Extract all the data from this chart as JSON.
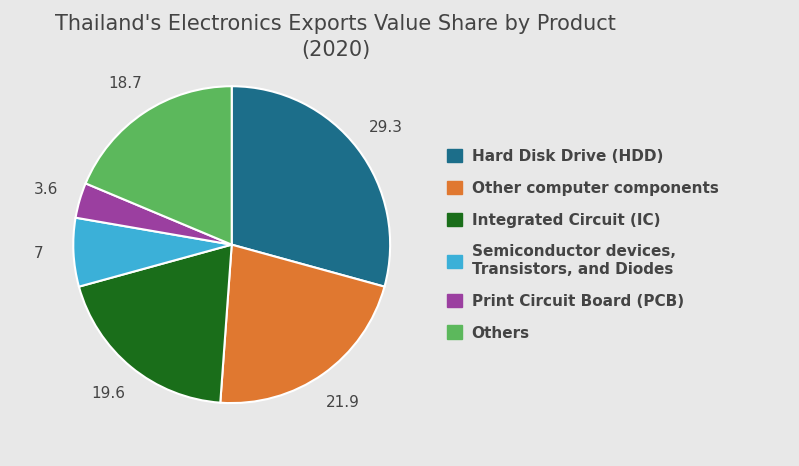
{
  "title": "Thailand's Electronics Exports Value Share by Product\n(2020)",
  "slices": [
    29.3,
    21.9,
    19.6,
    7.0,
    3.6,
    18.7
  ],
  "labels": [
    "29.3",
    "21.9",
    "19.6",
    "7",
    "3.6",
    "18.7"
  ],
  "legend_labels": [
    "Hard Disk Drive (HDD)",
    "Other computer components",
    "Integrated Circuit (IC)",
    "Semiconductor devices,\nTransistors, and Diodes",
    "Print Circuit Board (PCB)",
    "Others"
  ],
  "colors": [
    "#1c6e8a",
    "#e07830",
    "#1a6e1a",
    "#3bb0d8",
    "#9b3fa0",
    "#5cb85c"
  ],
  "background_color": "#e8e8e8",
  "title_fontsize": 15,
  "label_fontsize": 11,
  "legend_fontsize": 11
}
